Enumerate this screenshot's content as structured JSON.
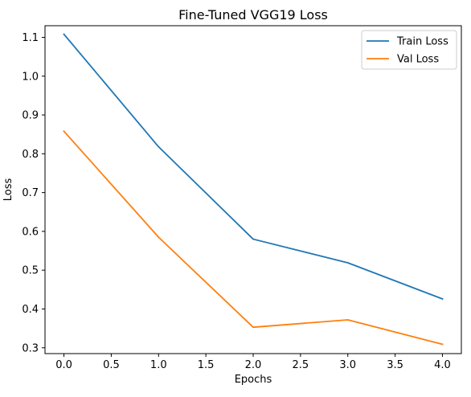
{
  "chart_data": {
    "type": "line",
    "title": "Fine-Tuned VGG19 Loss",
    "xlabel": "Epochs",
    "ylabel": "Loss",
    "x": [
      0,
      1,
      2,
      3,
      4
    ],
    "xlim": [
      -0.2,
      4.2
    ],
    "ylim": [
      0.285,
      1.13
    ],
    "xticks": [
      0.0,
      0.5,
      1.0,
      1.5,
      2.0,
      2.5,
      3.0,
      3.5,
      4.0
    ],
    "xtick_labels": [
      "0.0",
      "0.5",
      "1.0",
      "1.5",
      "2.0",
      "2.5",
      "3.0",
      "3.5",
      "4.0"
    ],
    "yticks": [
      0.3,
      0.4,
      0.5,
      0.6,
      0.7,
      0.8,
      0.9,
      1.0,
      1.1
    ],
    "ytick_labels": [
      "0.3",
      "0.4",
      "0.5",
      "0.6",
      "0.7",
      "0.8",
      "0.9",
      "1.0",
      "1.1"
    ],
    "grid": false,
    "legend_position": "top-right",
    "series": [
      {
        "name": "Train Loss",
        "color": "#1f77b4",
        "values": [
          1.108,
          0.818,
          0.58,
          0.519,
          0.426
        ]
      },
      {
        "name": "Val Loss",
        "color": "#ff7f0e",
        "values": [
          0.858,
          0.585,
          0.353,
          0.372,
          0.309
        ]
      }
    ]
  }
}
